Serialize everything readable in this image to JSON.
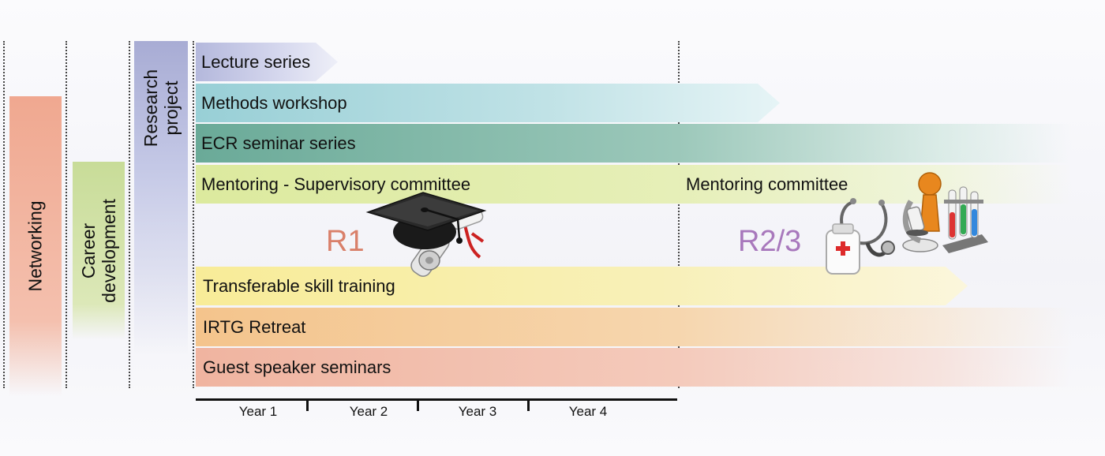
{
  "columns": {
    "networking": "Networking",
    "career_line1": "Career",
    "career_line2": "development",
    "research_line1": "Research",
    "research_line2": "project"
  },
  "bands": {
    "lecture": "Lecture series",
    "methods": "Methods workshop",
    "ecr": "ECR seminar series",
    "mentoring_left": "Mentoring -  Supervisory committee",
    "mentoring_right": "Mentoring committee",
    "transferable": "Transferable skill training",
    "retreat": "IRTG Retreat",
    "guest": "Guest speaker seminars"
  },
  "phases": {
    "r1": "R1",
    "r23": "R2/3"
  },
  "timeline": {
    "years": [
      "Year 1",
      "Year 2",
      "Year 3",
      "Year 4"
    ]
  },
  "icons": [
    "graduation-cap-icon",
    "diploma-scroll-icon",
    "stethoscope-icon",
    "medicine-bottle-icon",
    "scientist-icon",
    "microscope-icon",
    "test-tubes-icon"
  ],
  "colors": {
    "networking": "#f0a890",
    "career": "#c8dc98",
    "research": "#a8acd4",
    "lecture": "#b4b8dc",
    "methods": "#98cfd6",
    "ecr": "#6aaa98",
    "mentoring": "#dcea9e",
    "transferable": "#f8ec98",
    "retreat": "#f4c48c",
    "guest": "#f0b4a0",
    "r1": "#d9806a",
    "r23": "#a878bc"
  }
}
